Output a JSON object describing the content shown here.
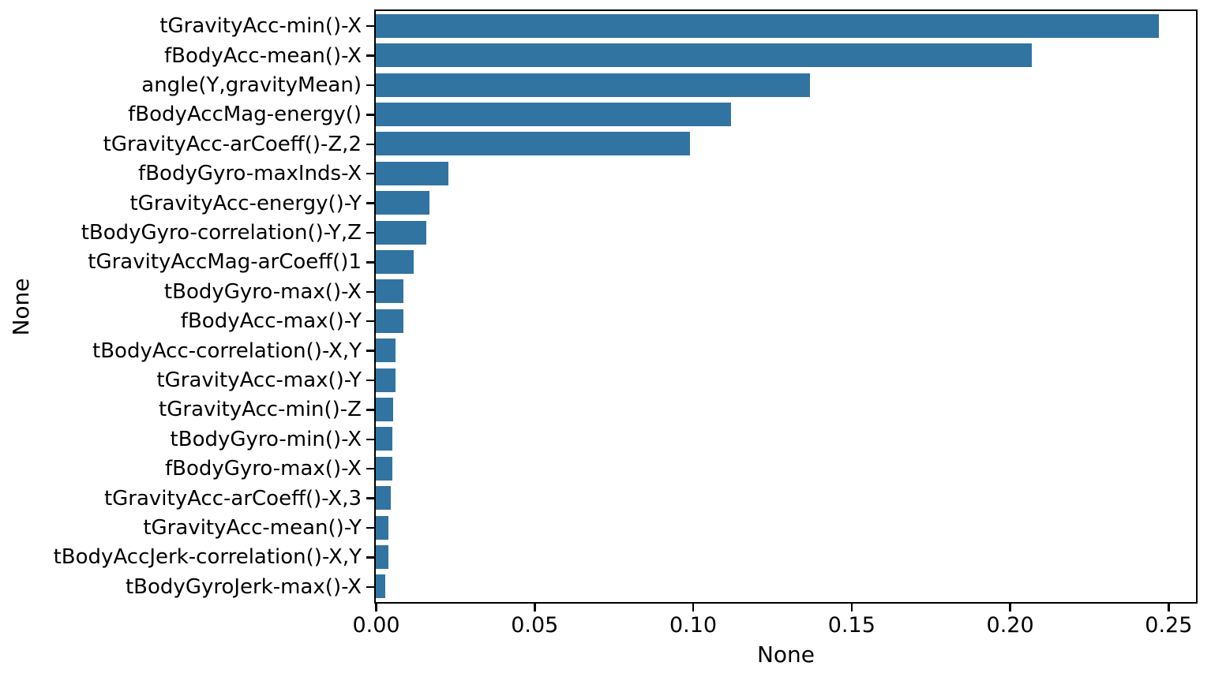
{
  "figure": {
    "background_color": "#ffffff",
    "bar_color": "#3274a1",
    "text_color": "#000000",
    "spine_color": "#000000"
  },
  "chart_data": {
    "type": "bar",
    "orientation": "horizontal",
    "title": "",
    "xlabel": "None",
    "ylabel": "None",
    "grid": false,
    "legend": null,
    "xlim": [
      0,
      0.2585
    ],
    "x_ticks": [
      0.0,
      0.05,
      0.1,
      0.15,
      0.2,
      0.25
    ],
    "x_tick_labels": [
      "0.00",
      "0.05",
      "0.10",
      "0.15",
      "0.20",
      "0.25"
    ],
    "categories": [
      "tGravityAcc-min()-X",
      "fBodyAcc-mean()-X",
      "angle(Y,gravityMean)",
      "fBodyAccMag-energy()",
      "tGravityAcc-arCoeff()-Z,2",
      "fBodyGyro-maxInds-X",
      "tGravityAcc-energy()-Y",
      "tBodyGyro-correlation()-Y,Z",
      "tGravityAccMag-arCoeff()1",
      "tBodyGyro-max()-X",
      "fBodyAcc-max()-Y",
      "tBodyAcc-correlation()-X,Y",
      "tGravityAcc-max()-Y",
      "tGravityAcc-min()-Z",
      "tBodyGyro-min()-X",
      "fBodyGyro-max()-X",
      "tGravityAcc-arCoeff()-X,3",
      "tGravityAcc-mean()-Y",
      "tBodyAccJerk-correlation()-X,Y",
      "tBodyGyroJerk-max()-X"
    ],
    "values": [
      0.247,
      0.207,
      0.137,
      0.112,
      0.099,
      0.023,
      0.017,
      0.016,
      0.012,
      0.0088,
      0.0086,
      0.0063,
      0.0062,
      0.0056,
      0.0053,
      0.0052,
      0.0047,
      0.004,
      0.0039,
      0.0031
    ]
  }
}
